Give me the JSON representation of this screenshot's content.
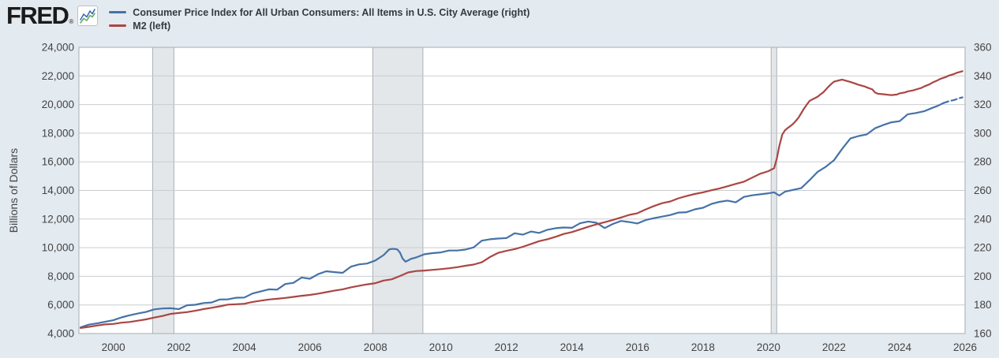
{
  "header": {
    "logo_text": "FRED",
    "logo_reg": "®",
    "legend": [
      {
        "label": "Consumer Price Index for All Urban Consumers: All Items in U.S. City Average (right)",
        "color": "#4572a7"
      },
      {
        "label": "M2 (left)",
        "color": "#aa4643"
      }
    ]
  },
  "colors": {
    "page_bg": "#e3eaf0",
    "plot_bg": "#ffffff",
    "gridline": "#c9cdd1",
    "plot_border": "#b3b8bd",
    "recession_fill": "#e3e7ea",
    "recession_edge": "#a9b0b6",
    "tick_text": "#444444",
    "axis_title_text": "#444444",
    "legend_text": "#333a40",
    "logo_text": "#1b1b1b",
    "cpi_line": "#4572a7",
    "m2_line": "#aa4643",
    "logo_icon_blue": "#3a6fb0",
    "logo_icon_green": "#6aa667"
  },
  "chart_data": {
    "type": "line",
    "title": "",
    "left_axis": {
      "label": "Billions of Dollars",
      "min": 4000,
      "max": 24000,
      "ticks": [
        4000,
        6000,
        8000,
        10000,
        12000,
        14000,
        16000,
        18000,
        20000,
        22000,
        24000
      ]
    },
    "right_axis": {
      "label": "",
      "min": 160,
      "max": 360,
      "ticks": [
        160,
        180,
        200,
        220,
        240,
        260,
        280,
        300,
        320,
        340,
        360
      ]
    },
    "x_axis": {
      "min": 1998.95,
      "max": 2026.0,
      "ticks": [
        2000,
        2002,
        2004,
        2006,
        2008,
        2010,
        2012,
        2014,
        2016,
        2018,
        2020,
        2022,
        2024,
        2026
      ]
    },
    "grid": "horizontal-only",
    "legend_position": "top-left",
    "recession_bands": [
      {
        "from": 2001.2,
        "to": 2001.85
      },
      {
        "from": 2007.92,
        "to": 2009.45
      },
      {
        "from": 2020.08,
        "to": 2020.25
      }
    ],
    "series": [
      {
        "name": "Consumer Price Index for All Urban Consumers: All Items in U.S. City Average (right)",
        "axis": "right",
        "color": "#4572a7",
        "dash_from": 2025.33,
        "points": [
          [
            1999.0,
            164.3
          ],
          [
            1999.25,
            166.2
          ],
          [
            1999.5,
            167.1
          ],
          [
            1999.75,
            168.2
          ],
          [
            2000.0,
            169.3
          ],
          [
            2000.25,
            171.3
          ],
          [
            2000.5,
            172.8
          ],
          [
            2000.75,
            174.0
          ],
          [
            2001.0,
            175.1
          ],
          [
            2001.25,
            176.9
          ],
          [
            2001.5,
            177.5
          ],
          [
            2001.75,
            177.7
          ],
          [
            2002.0,
            177.1
          ],
          [
            2002.25,
            179.8
          ],
          [
            2002.5,
            180.1
          ],
          [
            2002.75,
            181.3
          ],
          [
            2003.0,
            181.7
          ],
          [
            2003.25,
            183.8
          ],
          [
            2003.5,
            183.9
          ],
          [
            2003.75,
            185.0
          ],
          [
            2004.0,
            185.2
          ],
          [
            2004.25,
            188.0
          ],
          [
            2004.5,
            189.4
          ],
          [
            2004.75,
            190.9
          ],
          [
            2005.0,
            190.7
          ],
          [
            2005.25,
            194.6
          ],
          [
            2005.5,
            195.4
          ],
          [
            2005.75,
            199.2
          ],
          [
            2006.0,
            198.3
          ],
          [
            2006.25,
            201.5
          ],
          [
            2006.5,
            203.5
          ],
          [
            2006.75,
            202.9
          ],
          [
            2007.0,
            202.4
          ],
          [
            2007.25,
            206.7
          ],
          [
            2007.5,
            208.3
          ],
          [
            2007.75,
            208.9
          ],
          [
            2008.0,
            211.1
          ],
          [
            2008.25,
            214.8
          ],
          [
            2008.42,
            218.8
          ],
          [
            2008.5,
            219.1
          ],
          [
            2008.58,
            219.1
          ],
          [
            2008.67,
            218.8
          ],
          [
            2008.75,
            216.6
          ],
          [
            2008.83,
            212.4
          ],
          [
            2008.92,
            210.2
          ],
          [
            2009.0,
            211.1
          ],
          [
            2009.08,
            212.2
          ],
          [
            2009.25,
            213.2
          ],
          [
            2009.5,
            215.4
          ],
          [
            2009.75,
            216.2
          ],
          [
            2010.0,
            216.7
          ],
          [
            2010.25,
            218.0
          ],
          [
            2010.5,
            218.0
          ],
          [
            2010.75,
            218.7
          ],
          [
            2011.0,
            220.2
          ],
          [
            2011.25,
            224.9
          ],
          [
            2011.5,
            225.9
          ],
          [
            2011.75,
            226.4
          ],
          [
            2012.0,
            226.7
          ],
          [
            2012.25,
            230.1
          ],
          [
            2012.5,
            229.1
          ],
          [
            2012.75,
            231.3
          ],
          [
            2013.0,
            230.3
          ],
          [
            2013.25,
            232.5
          ],
          [
            2013.5,
            233.6
          ],
          [
            2013.75,
            234.1
          ],
          [
            2014.0,
            233.9
          ],
          [
            2014.25,
            237.1
          ],
          [
            2014.5,
            238.3
          ],
          [
            2014.75,
            237.4
          ],
          [
            2015.0,
            233.7
          ],
          [
            2015.25,
            236.6
          ],
          [
            2015.5,
            238.7
          ],
          [
            2015.75,
            237.9
          ],
          [
            2016.0,
            236.9
          ],
          [
            2016.25,
            239.3
          ],
          [
            2016.5,
            240.6
          ],
          [
            2016.75,
            241.7
          ],
          [
            2017.0,
            242.8
          ],
          [
            2017.25,
            244.5
          ],
          [
            2017.5,
            244.8
          ],
          [
            2017.75,
            246.8
          ],
          [
            2018.0,
            247.9
          ],
          [
            2018.25,
            250.5
          ],
          [
            2018.5,
            252.0
          ],
          [
            2018.75,
            252.9
          ],
          [
            2019.0,
            251.7
          ],
          [
            2019.25,
            255.5
          ],
          [
            2019.5,
            256.6
          ],
          [
            2019.75,
            257.3
          ],
          [
            2020.0,
            258.0
          ],
          [
            2020.17,
            258.7
          ],
          [
            2020.33,
            256.4
          ],
          [
            2020.5,
            259.1
          ],
          [
            2020.75,
            260.4
          ],
          [
            2021.0,
            261.6
          ],
          [
            2021.25,
            267.1
          ],
          [
            2021.5,
            273.0
          ],
          [
            2021.75,
            276.6
          ],
          [
            2022.0,
            281.1
          ],
          [
            2022.25,
            289.1
          ],
          [
            2022.5,
            296.3
          ],
          [
            2022.75,
            298.0
          ],
          [
            2023.0,
            299.2
          ],
          [
            2023.25,
            303.4
          ],
          [
            2023.5,
            305.7
          ],
          [
            2023.75,
            307.6
          ],
          [
            2024.0,
            308.4
          ],
          [
            2024.25,
            313.2
          ],
          [
            2024.5,
            314.1
          ],
          [
            2024.75,
            315.3
          ],
          [
            2025.0,
            317.7
          ],
          [
            2025.17,
            319.1
          ],
          [
            2025.33,
            321.0
          ],
          [
            2025.5,
            322.3
          ],
          [
            2025.67,
            323.2
          ],
          [
            2025.83,
            324.5
          ],
          [
            2025.92,
            325.0
          ]
        ]
      },
      {
        "name": "M2 (left)",
        "axis": "left",
        "color": "#aa4643",
        "points": [
          [
            1999.0,
            4390
          ],
          [
            1999.25,
            4470
          ],
          [
            1999.5,
            4560
          ],
          [
            1999.75,
            4640
          ],
          [
            2000.0,
            4670
          ],
          [
            2000.25,
            4760
          ],
          [
            2000.5,
            4810
          ],
          [
            2000.75,
            4900
          ],
          [
            2001.0,
            4990
          ],
          [
            2001.25,
            5120
          ],
          [
            2001.5,
            5230
          ],
          [
            2001.75,
            5370
          ],
          [
            2002.0,
            5440
          ],
          [
            2002.25,
            5500
          ],
          [
            2002.5,
            5590
          ],
          [
            2002.75,
            5710
          ],
          [
            2003.0,
            5800
          ],
          [
            2003.25,
            5900
          ],
          [
            2003.5,
            6020
          ],
          [
            2003.75,
            6050
          ],
          [
            2004.0,
            6080
          ],
          [
            2004.25,
            6210
          ],
          [
            2004.5,
            6300
          ],
          [
            2004.75,
            6380
          ],
          [
            2005.0,
            6430
          ],
          [
            2005.25,
            6490
          ],
          [
            2005.5,
            6560
          ],
          [
            2005.75,
            6640
          ],
          [
            2006.0,
            6700
          ],
          [
            2006.25,
            6790
          ],
          [
            2006.5,
            6890
          ],
          [
            2006.75,
            7000
          ],
          [
            2007.0,
            7090
          ],
          [
            2007.25,
            7230
          ],
          [
            2007.5,
            7340
          ],
          [
            2007.75,
            7440
          ],
          [
            2008.0,
            7520
          ],
          [
            2008.25,
            7700
          ],
          [
            2008.5,
            7790
          ],
          [
            2008.75,
            8020
          ],
          [
            2009.0,
            8270
          ],
          [
            2009.25,
            8370
          ],
          [
            2009.5,
            8400
          ],
          [
            2009.75,
            8450
          ],
          [
            2010.0,
            8500
          ],
          [
            2010.25,
            8560
          ],
          [
            2010.5,
            8640
          ],
          [
            2010.75,
            8740
          ],
          [
            2011.0,
            8820
          ],
          [
            2011.25,
            8980
          ],
          [
            2011.5,
            9350
          ],
          [
            2011.75,
            9640
          ],
          [
            2012.0,
            9780
          ],
          [
            2012.25,
            9900
          ],
          [
            2012.5,
            10060
          ],
          [
            2012.75,
            10260
          ],
          [
            2013.0,
            10460
          ],
          [
            2013.25,
            10590
          ],
          [
            2013.5,
            10760
          ],
          [
            2013.75,
            10960
          ],
          [
            2014.0,
            11090
          ],
          [
            2014.25,
            11280
          ],
          [
            2014.5,
            11460
          ],
          [
            2014.75,
            11630
          ],
          [
            2015.0,
            11780
          ],
          [
            2015.25,
            11940
          ],
          [
            2015.5,
            12110
          ],
          [
            2015.75,
            12290
          ],
          [
            2016.0,
            12410
          ],
          [
            2016.25,
            12670
          ],
          [
            2016.5,
            12910
          ],
          [
            2016.75,
            13110
          ],
          [
            2017.0,
            13230
          ],
          [
            2017.25,
            13450
          ],
          [
            2017.5,
            13610
          ],
          [
            2017.75,
            13750
          ],
          [
            2018.0,
            13870
          ],
          [
            2018.25,
            14010
          ],
          [
            2018.5,
            14130
          ],
          [
            2018.75,
            14290
          ],
          [
            2019.0,
            14460
          ],
          [
            2019.25,
            14610
          ],
          [
            2019.5,
            14890
          ],
          [
            2019.75,
            15170
          ],
          [
            2020.0,
            15350
          ],
          [
            2020.08,
            15450
          ],
          [
            2020.17,
            15550
          ],
          [
            2020.25,
            16200
          ],
          [
            2020.33,
            17100
          ],
          [
            2020.42,
            17900
          ],
          [
            2020.5,
            18200
          ],
          [
            2020.58,
            18350
          ],
          [
            2020.67,
            18500
          ],
          [
            2020.75,
            18650
          ],
          [
            2020.83,
            18850
          ],
          [
            2020.92,
            19100
          ],
          [
            2021.0,
            19400
          ],
          [
            2021.08,
            19700
          ],
          [
            2021.17,
            20000
          ],
          [
            2021.25,
            20250
          ],
          [
            2021.33,
            20350
          ],
          [
            2021.42,
            20450
          ],
          [
            2021.5,
            20550
          ],
          [
            2021.58,
            20700
          ],
          [
            2021.67,
            20850
          ],
          [
            2021.75,
            21050
          ],
          [
            2021.83,
            21250
          ],
          [
            2021.92,
            21450
          ],
          [
            2022.0,
            21600
          ],
          [
            2022.17,
            21700
          ],
          [
            2022.25,
            21740
          ],
          [
            2022.33,
            21690
          ],
          [
            2022.5,
            21580
          ],
          [
            2022.67,
            21450
          ],
          [
            2022.75,
            21380
          ],
          [
            2022.92,
            21280
          ],
          [
            2023.0,
            21200
          ],
          [
            2023.17,
            21060
          ],
          [
            2023.25,
            20850
          ],
          [
            2023.33,
            20760
          ],
          [
            2023.5,
            20720
          ],
          [
            2023.67,
            20680
          ],
          [
            2023.75,
            20660
          ],
          [
            2023.92,
            20700
          ],
          [
            2024.0,
            20780
          ],
          [
            2024.17,
            20850
          ],
          [
            2024.25,
            20920
          ],
          [
            2024.42,
            20990
          ],
          [
            2024.5,
            21050
          ],
          [
            2024.67,
            21170
          ],
          [
            2024.75,
            21260
          ],
          [
            2024.92,
            21420
          ],
          [
            2025.0,
            21530
          ],
          [
            2025.17,
            21700
          ],
          [
            2025.25,
            21800
          ],
          [
            2025.42,
            21930
          ],
          [
            2025.5,
            22020
          ],
          [
            2025.67,
            22140
          ],
          [
            2025.75,
            22220
          ],
          [
            2025.92,
            22330
          ]
        ]
      }
    ]
  }
}
